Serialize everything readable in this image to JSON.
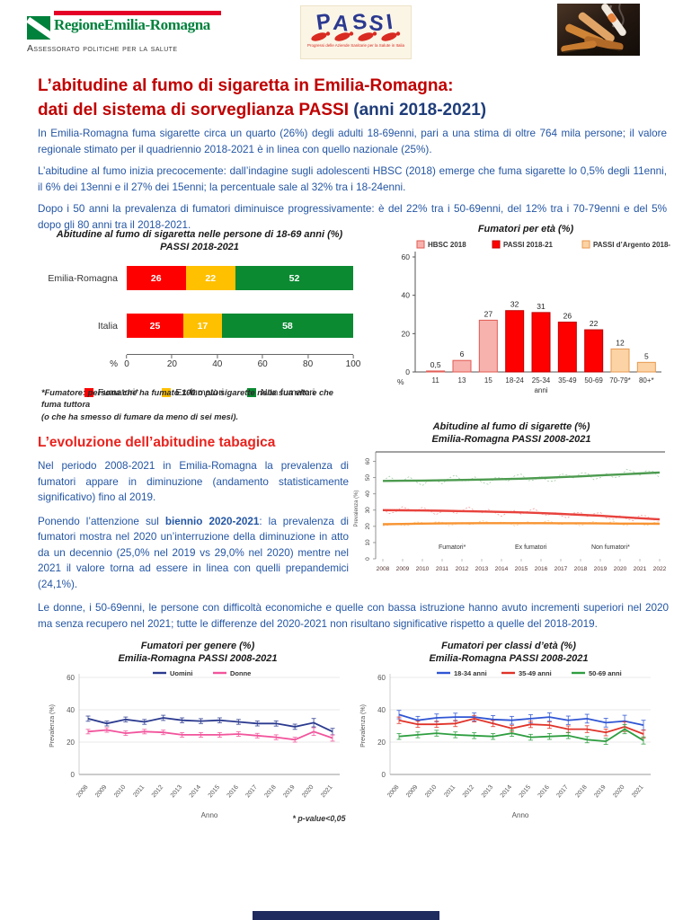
{
  "header": {
    "region_logo_title": "RegioneEmilia-Romagna",
    "region_logo_subtitle": "Assessorato politiche per la salute",
    "passi_logo_letters": [
      "P",
      "A",
      "S",
      "S",
      "I"
    ],
    "passi_logo_subtext": "Progressi delle Aziende Sanitarie per la Salute in Italia"
  },
  "title": {
    "line1": "L’abitudine al fumo di sigaretta in Emilia-Romagna:",
    "line2_red": "dati del sistema di sorveglianza PASSI ",
    "line2_blue": "(anni 2018-2021)"
  },
  "intro": {
    "p1": "In Emilia-Romagna fuma sigarette circa un quarto (26%) degli adulti 18-69enni, pari a una stima di oltre 764 mila persone; il valore regionale stimato per il quadriennio 2018-2021 è in linea con quello nazionale (25%).",
    "p2": "L’abitudine al fumo inizia precocemente: dall’indagine sugli adolescenti HBSC (2018) emerge che fuma sigarette lo 0,5% degli 11enni, il 6% dei 13enni e il 27% dei 15enni; la percentuale sale al 32% tra i 18-24enni.",
    "p3": "Dopo i 50 anni la prevalenza di fumatori diminuisce progressivamente: è del 22% tra i 50-69enni, del 12% tra i 70-79enni e del 5% dopo gli 80 anni tra il 2018-2021."
  },
  "footnote_fumatore": {
    "line1": "*Fumatore: persona che ha fumato 100 o più sigarette nella sua vita e che fuma tuttora",
    "line2": "(o che ha smesso di fumare da meno di sei mesi)."
  },
  "section2": {
    "heading": "L’evoluzione dell’abitudine tabagica",
    "p1": "Nel periodo 2008-2021 in Emilia-Romagna la prevalenza di fumatori appare in diminuzione (andamento statisticamente significativo) fino al 2019.",
    "p2_before": "Ponendo l’attenzione sul ",
    "p2_bold": "biennio 2020-2021",
    "p2_after": ": la prevalenza di fumatori mostra nel 2020 un’interruzione della diminuzione in atto da un decennio (25,0% nel 2019 vs 29,0% nel 2020) mentre nel 2021 il valore torna ad essere in linea con quelli prepandemici (24,1%)."
  },
  "para_bottom": "Le donne, i 50-69enni, le persone con difficoltà economiche e quelle con bassa istruzione hanno avuto incrementi superiori nel 2020 ma senza recupero nel 2021; tutte le differenze del 2020-2021 non risultano significative rispetto a quelle del 2018-2019.",
  "pvalue_note": "* p-value<0,05",
  "colors": {
    "title_red": "#C00000",
    "heading_red": "#E8231E",
    "body_blue": "#2456A4",
    "footer_navy": "#1F2A5E"
  },
  "chart_data": [
    {
      "type": "bar",
      "orientation": "horizontal-stacked",
      "title": "Abitudine al fumo di sigaretta nelle persone di 18-69 anni (%)",
      "subtitle": "PASSI 2018-2021",
      "categories": [
        "Emilia-Romagna",
        "Italia"
      ],
      "series": [
        {
          "name": "Fumatori*",
          "color": "#FE0000",
          "values": [
            26,
            25
          ]
        },
        {
          "name": "Ex-fumatori",
          "color": "#FFC000",
          "values": [
            22,
            17
          ]
        },
        {
          "name": "Non fumatori",
          "color": "#0B8A32",
          "values": [
            52,
            58
          ]
        }
      ],
      "xlim": [
        0,
        100
      ],
      "xticks": [
        0,
        20,
        40,
        60,
        80,
        100
      ],
      "axis_unit": "%",
      "legend_position": "bottom"
    },
    {
      "type": "bar",
      "title": "Fumatori per età (%)",
      "categories": [
        "11",
        "13",
        "15",
        "18-24",
        "25-34",
        "35-49",
        "50-69",
        "70-79*",
        "80+*"
      ],
      "values": [
        0.5,
        6,
        27,
        32,
        31,
        26,
        22,
        12,
        5
      ],
      "value_labels": [
        "0,5",
        "6",
        "27",
        "32",
        "31",
        "26",
        "22",
        "12",
        "5"
      ],
      "bar_groups": [
        "hbsc",
        "hbsc",
        "hbsc",
        "passi",
        "passi",
        "passi",
        "passi",
        "argento",
        "argento"
      ],
      "legend": [
        {
          "key": "hbsc",
          "label": "HBSC 2018",
          "fill": "#F7B2AE",
          "border": "#E05A52"
        },
        {
          "key": "passi",
          "label": "PASSI 2018-21",
          "fill": "#FE0000",
          "border": "#C00000"
        },
        {
          "key": "argento",
          "label": "PASSI d’Argento 2018-21",
          "fill": "#FBD3A4",
          "border": "#E89A4F"
        }
      ],
      "ylim": [
        0,
        60
      ],
      "yticks": [
        0,
        20,
        40,
        60
      ],
      "xlabel_sub": "anni",
      "axis_unit": "%",
      "legend_position": "top"
    },
    {
      "type": "line",
      "title": "Abitudine al fumo di sigarette (%)",
      "subtitle": "Emilia-Romagna PASSI 2008-2021",
      "ylabel": "Prevalenza (%)",
      "x": [
        2008,
        2009,
        2010,
        2011,
        2012,
        2013,
        2014,
        2015,
        2016,
        2017,
        2018,
        2019,
        2020,
        2021,
        2022
      ],
      "series": [
        {
          "name": "Non fumatori*",
          "color": "#4C9B4F",
          "trend": [
            48.0,
            48.1,
            48.2,
            48.4,
            48.6,
            48.8,
            49.1,
            49.4,
            49.8,
            50.3,
            50.8,
            51.4,
            52.0,
            52.6,
            53.2
          ]
        },
        {
          "name": "Fumatori*",
          "color": "#E8423D",
          "trend": [
            30.0,
            29.9,
            29.8,
            29.6,
            29.4,
            29.2,
            28.9,
            28.6,
            28.2,
            27.7,
            27.1,
            26.5,
            25.8,
            25.0,
            24.3
          ]
        },
        {
          "name": "Ex fumatori",
          "color": "#F79432",
          "trend": [
            21.3,
            21.5,
            21.7,
            21.8,
            21.9,
            22.0,
            22.0,
            22.0,
            22.0,
            21.9,
            21.9,
            21.8,
            21.7,
            21.7,
            21.6
          ]
        }
      ],
      "legend_labels": [
        "Fumatori*",
        "Ex fumatori",
        "Non fumatori*"
      ],
      "ylim": [
        0,
        62
      ],
      "yticks": [
        0,
        10,
        20,
        30,
        40,
        50,
        60
      ]
    },
    {
      "type": "line",
      "title": "Fumatori per genere (%)",
      "subtitle": "Emilia-Romagna PASSI 2008-2021",
      "ylabel": "Prevalenza (%)",
      "xlabel": "Anno",
      "x": [
        2008,
        2009,
        2010,
        2011,
        2012,
        2013,
        2014,
        2015,
        2016,
        2017,
        2018,
        2019,
        2020,
        2021
      ],
      "series": [
        {
          "name": "Uomini",
          "color": "#2B3A8F",
          "values": [
            34.5,
            31.5,
            34,
            32.5,
            35,
            33.5,
            33,
            33.5,
            32.5,
            31.5,
            31.5,
            29.5,
            32,
            26.5
          ],
          "err": [
            1.6,
            1.5,
            1.5,
            1.5,
            1.6,
            1.5,
            1.5,
            1.5,
            1.5,
            1.5,
            1.6,
            1.6,
            2.6,
            2.0
          ]
        },
        {
          "name": "Donne",
          "color": "#F2549C",
          "values": [
            26.5,
            27.5,
            25.5,
            26.5,
            26,
            24.5,
            24.5,
            24.5,
            25,
            24,
            23,
            21.5,
            26.5,
            22.5
          ],
          "err": [
            1.4,
            1.4,
            1.4,
            1.4,
            1.4,
            1.4,
            1.4,
            1.4,
            1.4,
            1.4,
            1.5,
            1.5,
            2.4,
            1.9
          ]
        }
      ],
      "ylim": [
        0,
        60
      ],
      "yticks": [
        0,
        20,
        40,
        60
      ],
      "legend_position": "top"
    },
    {
      "type": "line",
      "title": "Fumatori per classi d’età (%)",
      "subtitle": "Emilia-Romagna PASSI 2008-2021",
      "ylabel": "Prevalenza (%)",
      "xlabel": "Anno",
      "x": [
        2008,
        2009,
        2010,
        2011,
        2012,
        2013,
        2014,
        2015,
        2016,
        2017,
        2018,
        2019,
        2020,
        2021
      ],
      "series": [
        {
          "name": "18-34 anni",
          "color": "#2F55D4",
          "values": [
            37,
            33.5,
            35,
            35.5,
            35.5,
            34,
            33.5,
            34.5,
            35.5,
            33.5,
            34.5,
            32,
            33,
            30.5
          ],
          "err": [
            2.6,
            2.4,
            2.4,
            2.4,
            2.5,
            2.4,
            2.4,
            2.5,
            2.6,
            2.6,
            2.7,
            2.7,
            3.6,
            3.0
          ]
        },
        {
          "name": "35-49 anni",
          "color": "#E03228",
          "values": [
            33.5,
            31,
            31,
            31.5,
            34.5,
            31.5,
            28.5,
            31,
            30.5,
            28,
            28,
            26,
            29.5,
            25
          ],
          "err": [
            2.0,
            1.9,
            1.9,
            1.9,
            2.0,
            1.9,
            1.9,
            2.0,
            2.0,
            2.0,
            2.1,
            2.1,
            3.0,
            2.4
          ]
        },
        {
          "name": "50-69 anni",
          "color": "#2E9E40",
          "values": [
            23.5,
            24.5,
            25.5,
            24.5,
            24,
            23.5,
            25.5,
            23,
            23.5,
            24,
            21.5,
            20.5,
            28,
            21
          ],
          "err": [
            1.8,
            1.8,
            1.8,
            1.8,
            1.8,
            1.8,
            1.9,
            1.8,
            1.8,
            1.8,
            1.9,
            1.9,
            2.8,
            2.2
          ]
        }
      ],
      "ylim": [
        0,
        60
      ],
      "yticks": [
        0,
        20,
        40,
        60
      ],
      "legend_position": "top"
    }
  ]
}
